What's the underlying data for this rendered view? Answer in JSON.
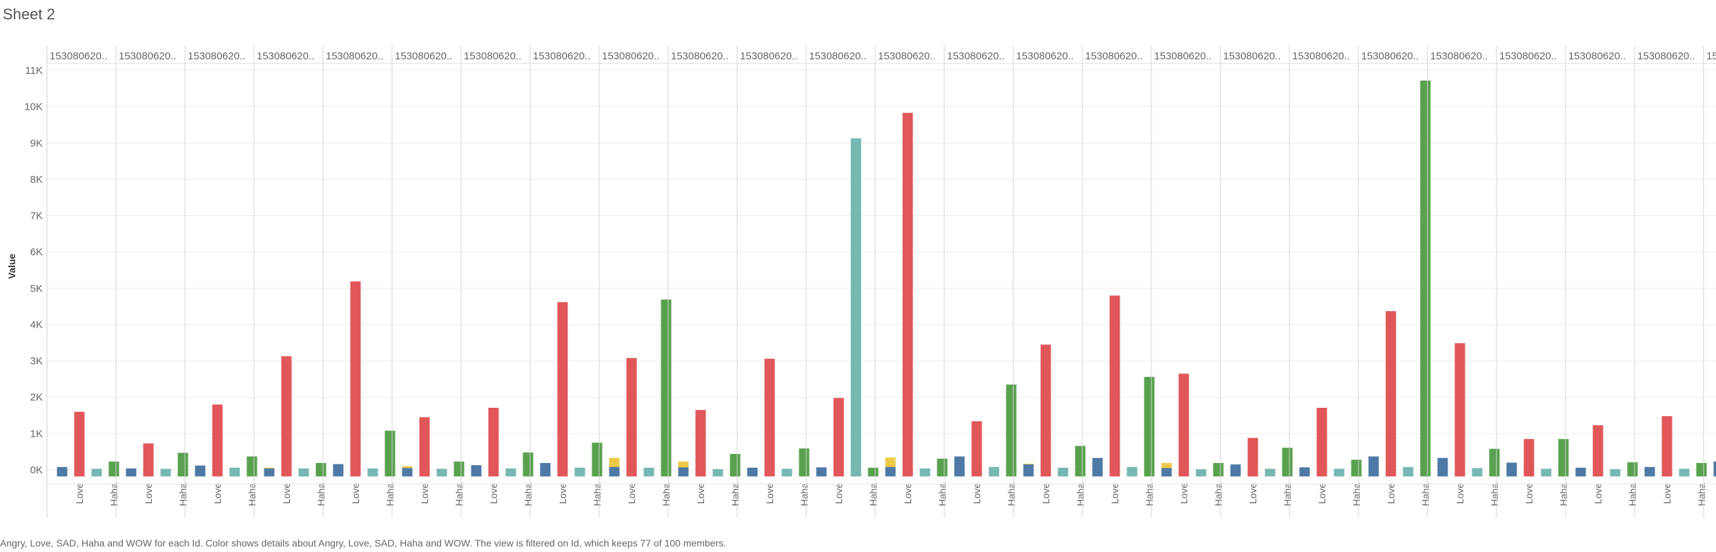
{
  "sheet": {
    "title": "Sheet 2"
  },
  "caption": "Angry, Love, SAD, Haha and WOW for each Id.  Color shows details about Angry, Love, SAD, Haha and WOW. The view is filtered on Id, which keeps 77 of 100 members.",
  "colors": {
    "Angry": "#4e79a7",
    "Love": "#e15759",
    "SAD": "#76b7b2",
    "Haha": "#59a14f",
    "WOW": "#edc948"
  },
  "chart_data": {
    "type": "bar",
    "title": "",
    "ylabel": "Value",
    "xlabel": "",
    "ylim": [
      -200,
      11400
    ],
    "yticks": [
      0,
      1000,
      2000,
      3000,
      4000,
      5000,
      6000,
      7000,
      8000,
      9000,
      10000,
      11000
    ],
    "ytick_labels": [
      "0K",
      "1K",
      "2K",
      "3K",
      "4K",
      "5K",
      "6K",
      "7K",
      "8K",
      "9K",
      "10K",
      "11K"
    ],
    "measures": [
      "Angry",
      "Love",
      "SAD",
      "Haha",
      "WOW"
    ],
    "measure_tick_labels": [
      "",
      "Love",
      "",
      "Haha",
      ""
    ],
    "grid": true,
    "legend": "none",
    "groups": [
      {
        "label": "153080620..",
        "values": {
          "Angry": 80,
          "Love": 1600,
          "SAD": 30,
          "Haha": 230,
          "WOW": 30
        }
      },
      {
        "label": "153080620..",
        "values": {
          "Angry": 40,
          "Love": 730,
          "SAD": 30,
          "Haha": 470,
          "WOW": 40
        }
      },
      {
        "label": "153080620..",
        "values": {
          "Angry": 120,
          "Love": 1800,
          "SAD": 60,
          "Haha": 370,
          "WOW": 60
        }
      },
      {
        "label": "153080620..",
        "values": {
          "Angry": 40,
          "Love": 3130,
          "SAD": 40,
          "Haha": 190,
          "WOW": 60
        }
      },
      {
        "label": "153080620..",
        "values": {
          "Angry": 160,
          "Love": 5190,
          "SAD": 40,
          "Haha": 1080,
          "WOW": 100
        }
      },
      {
        "label": "153080620..",
        "values": {
          "Angry": 50,
          "Love": 1450,
          "SAD": 30,
          "Haha": 230,
          "WOW": 60
        }
      },
      {
        "label": "153080620..",
        "values": {
          "Angry": 130,
          "Love": 1710,
          "SAD": 40,
          "Haha": 480,
          "WOW": 60
        }
      },
      {
        "label": "153080620..",
        "values": {
          "Angry": 190,
          "Love": 4620,
          "SAD": 60,
          "Haha": 750,
          "WOW": 330
        }
      },
      {
        "label": "153080620..",
        "values": {
          "Angry": 80,
          "Love": 3080,
          "SAD": 60,
          "Haha": 4690,
          "WOW": 230
        }
      },
      {
        "label": "153080620..",
        "values": {
          "Angry": 70,
          "Love": 1650,
          "SAD": 20,
          "Haha": 440,
          "WOW": 30
        }
      },
      {
        "label": "153080620..",
        "values": {
          "Angry": 60,
          "Love": 3060,
          "SAD": 30,
          "Haha": 590,
          "WOW": 60
        }
      },
      {
        "label": "153080620..",
        "values": {
          "Angry": 70,
          "Love": 1980,
          "SAD": 9130,
          "Haha": 60,
          "WOW": 340
        }
      },
      {
        "label": "153080620..",
        "values": {
          "Angry": 80,
          "Love": 9830,
          "SAD": 40,
          "Haha": 310,
          "WOW": 130
        }
      },
      {
        "label": "153080620..",
        "values": {
          "Angry": 370,
          "Love": 1340,
          "SAD": 80,
          "Haha": 2350,
          "WOW": 170
        }
      },
      {
        "label": "153080620..",
        "values": {
          "Angry": 150,
          "Love": 3450,
          "SAD": 60,
          "Haha": 660,
          "WOW": 130
        }
      },
      {
        "label": "153080620..",
        "values": {
          "Angry": 330,
          "Love": 4800,
          "SAD": 80,
          "Haha": 2560,
          "WOW": 190
        }
      },
      {
        "label": "153080620..",
        "values": {
          "Angry": 50,
          "Love": 2650,
          "SAD": 20,
          "Haha": 190,
          "WOW": 60
        }
      },
      {
        "label": "153080620..",
        "values": {
          "Angry": 150,
          "Love": 880,
          "SAD": 30,
          "Haha": 610,
          "WOW": 60
        }
      },
      {
        "label": "153080620..",
        "values": {
          "Angry": 70,
          "Love": 1710,
          "SAD": 30,
          "Haha": 280,
          "WOW": 50
        }
      },
      {
        "label": "153080620..",
        "values": {
          "Angry": 370,
          "Love": 4370,
          "SAD": 80,
          "Haha": 10720,
          "WOW": 200
        }
      },
      {
        "label": "153080620..",
        "values": {
          "Angry": 330,
          "Love": 3490,
          "SAD": 50,
          "Haha": 580,
          "WOW": 100
        }
      },
      {
        "label": "153080620..",
        "values": {
          "Angry": 200,
          "Love": 850,
          "SAD": 30,
          "Haha": 850,
          "WOW": 50
        }
      },
      {
        "label": "153080620..",
        "values": {
          "Angry": 60,
          "Love": 1230,
          "SAD": 20,
          "Haha": 210,
          "WOW": 30
        }
      },
      {
        "label": "153080620..",
        "values": {
          "Angry": 80,
          "Love": 1480,
          "SAD": 30,
          "Haha": 190,
          "WOW": 30
        }
      },
      {
        "label": "15",
        "values": {
          "Angry": 230,
          "Love": 0,
          "SAD": 0,
          "Haha": 0,
          "WOW": 0
        }
      }
    ]
  }
}
